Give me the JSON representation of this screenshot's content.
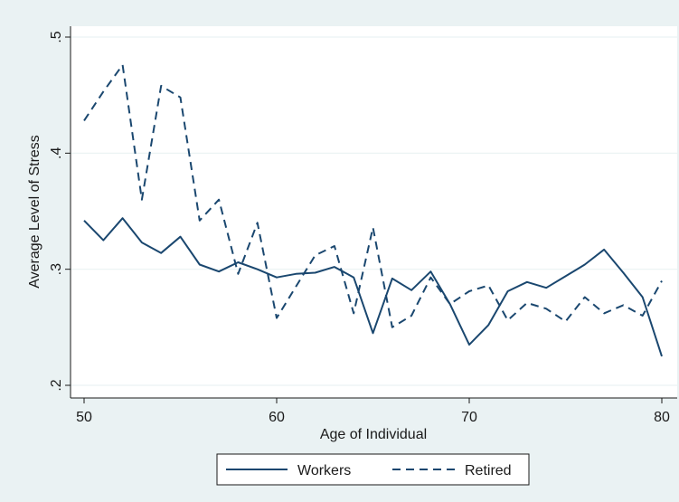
{
  "chart_data": {
    "type": "line",
    "xlabel": "Age of Individual",
    "ylabel": "Average Level of Stress",
    "xlim": [
      50,
      80
    ],
    "ylim": [
      0.2,
      0.5
    ],
    "x_ticks": [
      50,
      60,
      70,
      80
    ],
    "x_tick_labels": [
      "50",
      "60",
      "70",
      "80"
    ],
    "y_ticks": [
      0.2,
      0.3,
      0.4,
      0.5
    ],
    "y_tick_labels": [
      ".2",
      ".3",
      ".4",
      ".5"
    ],
    "grid": "horizontal",
    "legend_position": "bottom",
    "x": [
      50,
      51,
      52,
      53,
      54,
      55,
      56,
      57,
      58,
      59,
      60,
      61,
      62,
      63,
      64,
      65,
      66,
      67,
      68,
      69,
      70,
      71,
      72,
      73,
      74,
      75,
      76,
      77,
      78,
      79,
      80
    ],
    "series": [
      {
        "name": "Workers",
        "style": "solid",
        "color": "#1a476f",
        "values": [
          0.342,
          0.325,
          0.344,
          0.323,
          0.314,
          0.328,
          0.304,
          0.298,
          0.306,
          0.3,
          0.293,
          0.296,
          0.297,
          0.302,
          0.293,
          0.245,
          0.292,
          0.282,
          0.298,
          0.27,
          0.235,
          0.252,
          0.281,
          0.289,
          0.284,
          0.294,
          0.304,
          0.317,
          0.297,
          0.276,
          0.225
        ]
      },
      {
        "name": "Retired",
        "style": "dashed",
        "color": "#1a476f",
        "values": [
          0.428,
          0.453,
          0.476,
          0.36,
          0.458,
          0.448,
          0.342,
          0.36,
          0.296,
          0.34,
          0.258,
          0.285,
          0.312,
          0.32,
          0.262,
          0.336,
          0.25,
          0.26,
          0.293,
          0.27,
          0.281,
          0.286,
          0.256,
          0.271,
          0.266,
          0.255,
          0.276,
          0.262,
          0.269,
          0.26,
          0.29
        ]
      }
    ]
  }
}
